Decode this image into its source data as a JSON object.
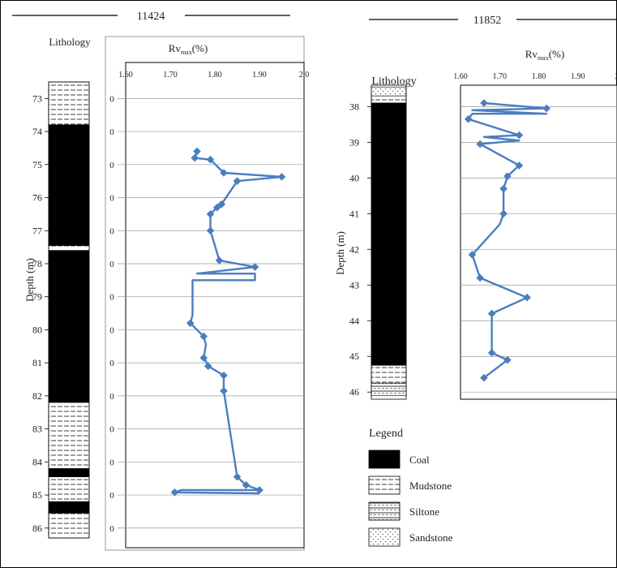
{
  "figure": {
    "legend_title": "Legend",
    "legend_items": [
      {
        "name": "coal",
        "label": "Coal"
      },
      {
        "name": "mudstone",
        "label": "Mudstone"
      },
      {
        "name": "siltstone",
        "label": "Siltone"
      },
      {
        "name": "sandstone",
        "label": "Sandstone"
      }
    ],
    "colors": {
      "series": "#4a7ec0",
      "coal": "#000000",
      "grid": "#999999"
    }
  },
  "chart_data": [
    {
      "type": "line",
      "title": "11424",
      "lithology_label": "Lithology",
      "ylabel": "Depth (m)",
      "xlabel_main": "Rv",
      "xlabel_sub": "max",
      "xlabel_unit": "(%)",
      "x_ticks": [
        "1.60",
        "1.70",
        "1.80",
        "1.90",
        "2.0"
      ],
      "xlim": [
        1.6,
        2.0
      ],
      "ylim": [
        72.5,
        86.3
      ],
      "depth_ticks": [
        "73",
        "74",
        "75",
        "76",
        "77",
        "78",
        "79",
        "80",
        "81",
        "82",
        "83",
        "84",
        "85",
        "86"
      ],
      "plot_tick_labels": [
        "0",
        "0",
        "0",
        "0",
        "0",
        "0",
        "0",
        "0",
        "0",
        "0",
        "0",
        "0",
        "0",
        "0"
      ],
      "grid": true,
      "series": [
        {
          "points": [
            [
              1.76,
              74.6
            ],
            [
              1.755,
              74.8
            ],
            [
              1.79,
              74.85
            ],
            [
              1.82,
              75.25
            ],
            [
              1.95,
              75.37
            ],
            [
              1.85,
              75.5
            ],
            [
              1.815,
              76.2
            ],
            [
              1.805,
              76.3
            ],
            [
              1.79,
              76.5
            ],
            [
              1.79,
              77.0
            ],
            [
              1.81,
              77.9
            ],
            [
              1.89,
              78.1
            ],
            [
              1.76,
              78.3
            ],
            [
              1.89,
              78.3
            ],
            [
              1.89,
              78.5
            ],
            [
              1.75,
              78.5
            ],
            [
              1.75,
              79.25
            ],
            [
              1.75,
              79.55
            ],
            [
              1.745,
              79.8
            ],
            [
              1.775,
              80.2
            ],
            [
              1.78,
              80.45
            ],
            [
              1.775,
              80.85
            ],
            [
              1.78,
              80.95
            ],
            [
              1.785,
              81.1
            ],
            [
              1.82,
              81.38
            ],
            [
              1.82,
              81.85
            ],
            [
              1.85,
              84.45
            ],
            [
              1.87,
              84.7
            ],
            [
              1.9,
              84.85
            ],
            [
              1.725,
              84.85
            ],
            [
              1.71,
              84.92
            ],
            [
              1.9,
              84.95
            ]
          ],
          "markers": [
            [
              1.76,
              74.6
            ],
            [
              1.755,
              74.8
            ],
            [
              1.79,
              74.85
            ],
            [
              1.82,
              75.25
            ],
            [
              1.95,
              75.37
            ],
            [
              1.85,
              75.5
            ],
            [
              1.815,
              76.2
            ],
            [
              1.805,
              76.3
            ],
            [
              1.79,
              76.5
            ],
            [
              1.79,
              77.0
            ],
            [
              1.81,
              77.9
            ],
            [
              1.89,
              78.1
            ],
            [
              1.745,
              79.8
            ],
            [
              1.775,
              80.2
            ],
            [
              1.775,
              80.85
            ],
            [
              1.785,
              81.1
            ],
            [
              1.82,
              81.38
            ],
            [
              1.82,
              81.85
            ],
            [
              1.85,
              84.45
            ],
            [
              1.87,
              84.7
            ],
            [
              1.9,
              84.85
            ],
            [
              1.71,
              84.92
            ]
          ]
        }
      ],
      "lithology": [
        {
          "type": "mudstone",
          "top": 72.5,
          "bottom": 73.8
        },
        {
          "type": "coal",
          "top": 73.8,
          "bottom": 77.45
        },
        {
          "type": "mudstone",
          "top": 77.45,
          "bottom": 77.6
        },
        {
          "type": "coal",
          "top": 77.6,
          "bottom": 82.2
        },
        {
          "type": "mudstone",
          "top": 82.2,
          "bottom": 84.2
        },
        {
          "type": "coal",
          "top": 84.2,
          "bottom": 84.45
        },
        {
          "type": "mudstone",
          "top": 84.45,
          "bottom": 85.2
        },
        {
          "type": "coal",
          "top": 85.2,
          "bottom": 85.55
        },
        {
          "type": "mudstone",
          "top": 85.55,
          "bottom": 86.3
        }
      ]
    },
    {
      "type": "line",
      "title": "11852",
      "lithology_label": "Lithology",
      "ylabel": "Depth (m)",
      "xlabel_main": "Rv",
      "xlabel_sub": "max",
      "xlabel_unit": "(%)",
      "x_ticks": [
        "1.60",
        "1.70",
        "1.80",
        "1.90",
        "2"
      ],
      "xlim": [
        1.6,
        2.0
      ],
      "ylim": [
        37.4,
        46.2
      ],
      "depth_ticks": [
        "38",
        "39",
        "40",
        "41",
        "42",
        "43",
        "44",
        "45",
        "46"
      ],
      "grid": true,
      "series": [
        {
          "points": [
            [
              1.66,
              37.9
            ],
            [
              1.82,
              38.05
            ],
            [
              1.63,
              38.1
            ],
            [
              1.82,
              38.2
            ],
            [
              1.63,
              38.2
            ],
            [
              1.62,
              38.35
            ],
            [
              1.75,
              38.8
            ],
            [
              1.66,
              38.85
            ],
            [
              1.75,
              38.95
            ],
            [
              1.65,
              39.05
            ],
            [
              1.75,
              39.65
            ],
            [
              1.72,
              39.95
            ],
            [
              1.71,
              40.3
            ],
            [
              1.71,
              41.0
            ],
            [
              1.7,
              41.3
            ],
            [
              1.63,
              42.15
            ],
            [
              1.65,
              42.8
            ],
            [
              1.77,
              43.35
            ],
            [
              1.68,
              43.8
            ],
            [
              1.68,
              44.9
            ],
            [
              1.72,
              45.1
            ],
            [
              1.66,
              45.6
            ]
          ],
          "markers": [
            [
              1.66,
              37.9
            ],
            [
              1.82,
              38.05
            ],
            [
              1.62,
              38.35
            ],
            [
              1.75,
              38.8
            ],
            [
              1.65,
              39.05
            ],
            [
              1.75,
              39.65
            ],
            [
              1.72,
              39.95
            ],
            [
              1.71,
              40.3
            ],
            [
              1.71,
              41.0
            ],
            [
              1.63,
              42.15
            ],
            [
              1.65,
              42.8
            ],
            [
              1.77,
              43.35
            ],
            [
              1.68,
              43.8
            ],
            [
              1.68,
              44.9
            ],
            [
              1.72,
              45.1
            ],
            [
              1.66,
              45.6
            ]
          ]
        }
      ],
      "lithology": [
        {
          "type": "sandstone",
          "top": 37.45,
          "bottom": 37.7
        },
        {
          "type": "mudstone",
          "top": 37.7,
          "bottom": 37.9
        },
        {
          "type": "coal",
          "top": 37.9,
          "bottom": 45.25
        },
        {
          "type": "mudstone",
          "top": 45.25,
          "bottom": 45.75
        },
        {
          "type": "siltstone",
          "top": 45.75,
          "bottom": 46.1
        }
      ]
    }
  ]
}
